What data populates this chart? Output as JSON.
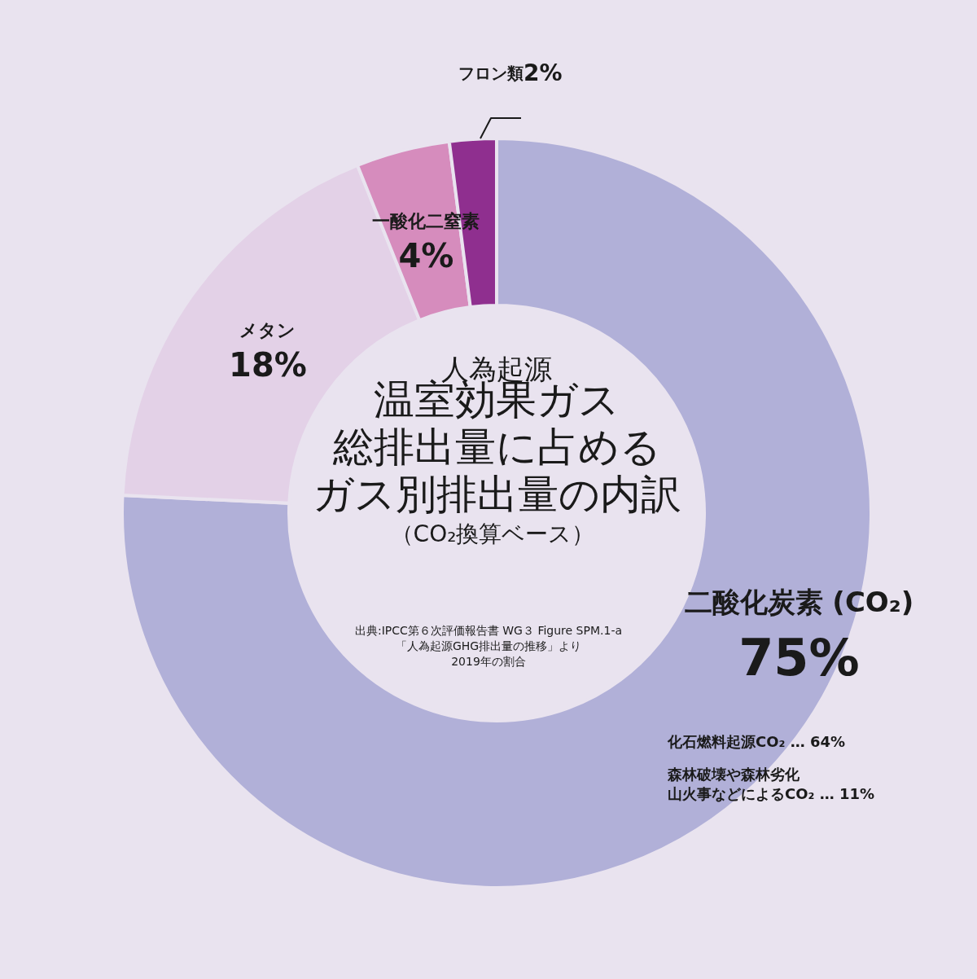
{
  "chart_data": {
    "type": "donut",
    "title": "人為起源温室効果ガス総排出量に占めるガス別排出量の内訳",
    "subtitle": "（CO₂換算ベース）",
    "categories": [
      "二酸化炭素 (CO₂)",
      "メタン",
      "一酸化二窒素",
      "フロン類"
    ],
    "values": [
      75,
      18,
      4,
      2
    ],
    "colors": [
      "#b1b0d8",
      "#e3d1e7",
      "#d68cbd",
      "#8f2f8f"
    ],
    "value_labels": [
      "75%",
      "18%",
      "4%",
      "2%"
    ],
    "annotations": [
      "出典:IPCC第６次評価報告書 WG３ Figure SPM.1-a「人為起源GHG排出量の推移」より2019年の割合",
      "化石燃料起源CO₂ … 64%",
      "森林破壊や森林劣化山火事などによるCO₂ … 11%"
    ]
  }
}
